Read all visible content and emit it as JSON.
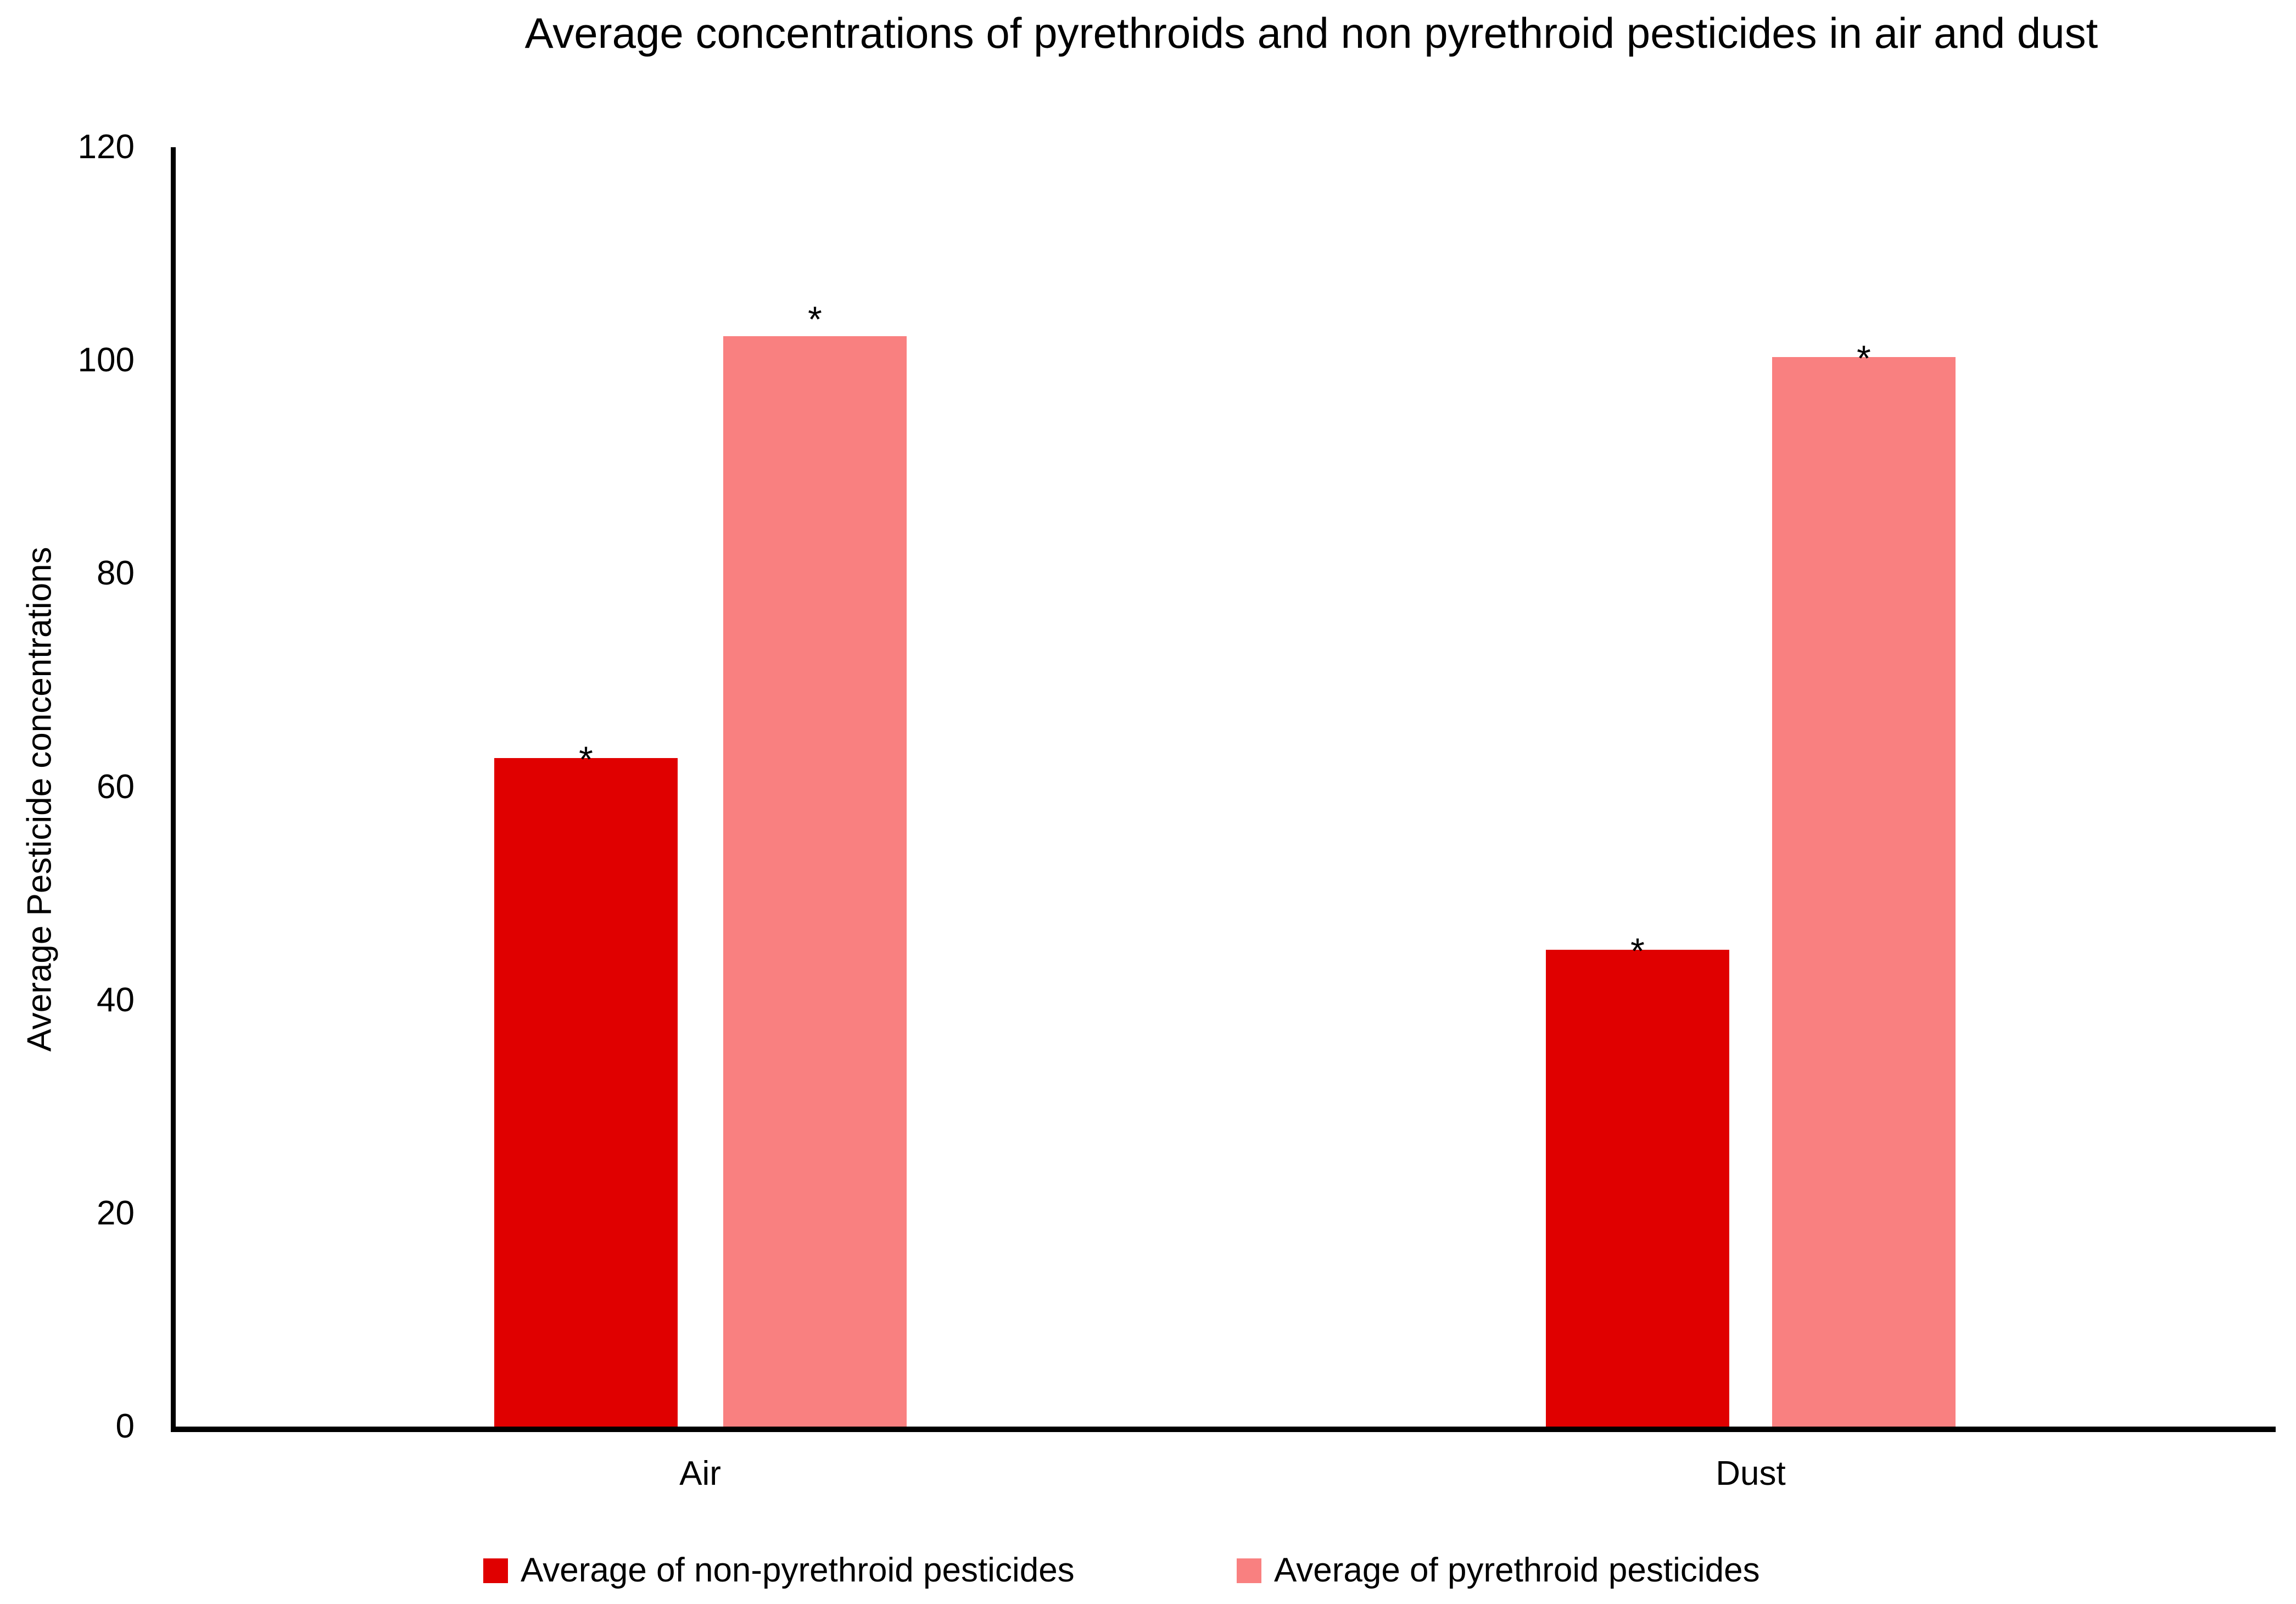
{
  "chart_data": {
    "type": "bar",
    "title": "Average concentrations of pyrethroids and non pyrethroid pesticides in air and dust",
    "xlabel": "",
    "ylabel": "Average Pesticide concentrations",
    "categories": [
      "Air",
      "Dust"
    ],
    "series": [
      {
        "name": "Average of non-pyrethroid pesticides",
        "color": "#e00000",
        "values": [
          62.7,
          44.7
        ],
        "annotations": [
          "*",
          "*"
        ]
      },
      {
        "name": "Average of pyrethroid pesticides",
        "color": "#f98080",
        "values": [
          102.3,
          100.3
        ],
        "annotations": [
          "*",
          "*"
        ]
      }
    ],
    "ylim": [
      0,
      120
    ],
    "yticks": [
      0,
      20,
      40,
      60,
      80,
      100,
      120
    ],
    "grid": false,
    "legend_position": "bottom",
    "axis_color": "#000000",
    "background_color": "#ffffff"
  }
}
